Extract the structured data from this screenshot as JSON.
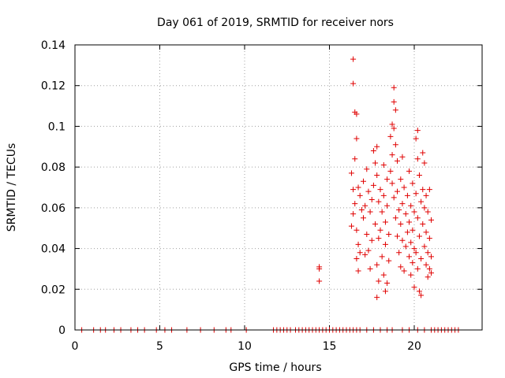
{
  "chart_data": {
    "type": "scatter",
    "title": "Day 061 of 2019, SRMTID for receiver nors",
    "xlabel": "GPS time / hours",
    "ylabel": "SRMTID / TECUs",
    "xlim": [
      0,
      24
    ],
    "ylim": [
      0,
      0.14
    ],
    "x_ticks": [
      {
        "value": 0,
        "label": "0"
      },
      {
        "value": 5,
        "label": "5"
      },
      {
        "value": 10,
        "label": "10"
      },
      {
        "value": 15,
        "label": "15"
      },
      {
        "value": 20,
        "label": "20"
      }
    ],
    "y_ticks": [
      {
        "value": 0,
        "label": "0"
      },
      {
        "value": 0.02,
        "label": "0.02"
      },
      {
        "value": 0.04,
        "label": "0.04"
      },
      {
        "value": 0.06,
        "label": "0.06"
      },
      {
        "value": 0.08,
        "label": "0.08"
      },
      {
        "value": 0.1,
        "label": "0.1"
      },
      {
        "value": 0.12,
        "label": "0.12"
      },
      {
        "value": 0.14,
        "label": "0.14"
      }
    ],
    "grid": true,
    "marker": "+",
    "marker_color": "#e00000",
    "series": [
      {
        "name": "SRMTID",
        "points": [
          [
            0.4,
            0
          ],
          [
            1.1,
            0
          ],
          [
            1.5,
            0
          ],
          [
            1.8,
            0
          ],
          [
            2.3,
            0
          ],
          [
            2.7,
            0
          ],
          [
            3.3,
            0
          ],
          [
            3.7,
            0
          ],
          [
            4.1,
            0
          ],
          [
            4.8,
            0
          ],
          [
            5.3,
            0
          ],
          [
            5.7,
            0
          ],
          [
            6.6,
            0
          ],
          [
            7.4,
            0
          ],
          [
            8.2,
            0
          ],
          [
            8.9,
            0
          ],
          [
            9.2,
            0
          ],
          [
            10.1,
            0
          ],
          [
            11.7,
            0
          ],
          [
            11.9,
            0
          ],
          [
            12.1,
            0
          ],
          [
            12.3,
            0
          ],
          [
            12.5,
            0
          ],
          [
            12.7,
            0
          ],
          [
            13.0,
            0
          ],
          [
            13.2,
            0
          ],
          [
            13.4,
            0
          ],
          [
            13.6,
            0
          ],
          [
            13.8,
            0
          ],
          [
            14.0,
            0
          ],
          [
            14.2,
            0
          ],
          [
            14.4,
            0
          ],
          [
            14.6,
            0
          ],
          [
            14.8,
            0
          ],
          [
            15.0,
            0
          ],
          [
            15.2,
            0
          ],
          [
            15.4,
            0
          ],
          [
            15.6,
            0
          ],
          [
            15.8,
            0
          ],
          [
            16.0,
            0
          ],
          [
            16.2,
            0
          ],
          [
            16.4,
            0
          ],
          [
            16.6,
            0
          ],
          [
            16.8,
            0
          ],
          [
            17.2,
            0
          ],
          [
            17.6,
            0
          ],
          [
            18.0,
            0
          ],
          [
            18.4,
            0
          ],
          [
            18.7,
            0
          ],
          [
            19.3,
            0
          ],
          [
            19.7,
            0
          ],
          [
            20.2,
            0
          ],
          [
            20.6,
            0
          ],
          [
            21.0,
            0
          ],
          [
            21.2,
            0
          ],
          [
            21.4,
            0
          ],
          [
            21.6,
            0
          ],
          [
            21.8,
            0
          ],
          [
            22.0,
            0
          ],
          [
            22.2,
            0
          ],
          [
            22.4,
            0
          ],
          [
            22.6,
            0
          ],
          [
            14.4,
            0.031
          ],
          [
            14.4,
            0.03
          ],
          [
            14.4,
            0.024
          ],
          [
            16.4,
            0.133
          ],
          [
            16.4,
            0.121
          ],
          [
            16.5,
            0.107
          ],
          [
            16.6,
            0.106
          ],
          [
            16.3,
            0.077
          ],
          [
            16.4,
            0.069
          ],
          [
            16.5,
            0.084
          ],
          [
            16.6,
            0.094
          ],
          [
            16.4,
            0.057
          ],
          [
            16.3,
            0.051
          ],
          [
            16.5,
            0.062
          ],
          [
            16.6,
            0.049
          ],
          [
            16.7,
            0.07
          ],
          [
            16.8,
            0.066
          ],
          [
            16.9,
            0.059
          ],
          [
            16.7,
            0.042
          ],
          [
            16.8,
            0.038
          ],
          [
            16.6,
            0.035
          ],
          [
            16.7,
            0.029
          ],
          [
            17.0,
            0.055
          ],
          [
            17.0,
            0.073
          ],
          [
            17.1,
            0.061
          ],
          [
            17.2,
            0.047
          ],
          [
            17.1,
            0.037
          ],
          [
            17.2,
            0.079
          ],
          [
            17.3,
            0.068
          ],
          [
            17.3,
            0.039
          ],
          [
            17.4,
            0.058
          ],
          [
            17.4,
            0.03
          ],
          [
            17.5,
            0.064
          ],
          [
            17.5,
            0.044
          ],
          [
            17.6,
            0.088
          ],
          [
            17.7,
            0.082
          ],
          [
            17.6,
            0.071
          ],
          [
            17.7,
            0.052
          ],
          [
            17.8,
            0.09
          ],
          [
            17.8,
            0.076
          ],
          [
            17.9,
            0.063
          ],
          [
            17.9,
            0.045
          ],
          [
            17.8,
            0.032
          ],
          [
            17.9,
            0.024
          ],
          [
            17.8,
            0.016
          ],
          [
            18.0,
            0.069
          ],
          [
            18.0,
            0.049
          ],
          [
            18.1,
            0.058
          ],
          [
            18.1,
            0.036
          ],
          [
            18.2,
            0.081
          ],
          [
            18.2,
            0.066
          ],
          [
            18.3,
            0.053
          ],
          [
            18.3,
            0.042
          ],
          [
            18.2,
            0.027
          ],
          [
            18.4,
            0.074
          ],
          [
            18.4,
            0.061
          ],
          [
            18.5,
            0.047
          ],
          [
            18.5,
            0.034
          ],
          [
            18.4,
            0.023
          ],
          [
            18.3,
            0.019
          ],
          [
            18.6,
            0.095
          ],
          [
            18.7,
            0.101
          ],
          [
            18.7,
            0.086
          ],
          [
            18.8,
            0.119
          ],
          [
            18.8,
            0.112
          ],
          [
            18.9,
            0.108
          ],
          [
            18.8,
            0.099
          ],
          [
            18.6,
            0.078
          ],
          [
            18.7,
            0.072
          ],
          [
            18.8,
            0.065
          ],
          [
            18.9,
            0.091
          ],
          [
            18.9,
            0.055
          ],
          [
            19.0,
            0.083
          ],
          [
            19.0,
            0.068
          ],
          [
            19.0,
            0.046
          ],
          [
            19.1,
            0.059
          ],
          [
            19.1,
            0.038
          ],
          [
            19.2,
            0.074
          ],
          [
            19.2,
            0.052
          ],
          [
            19.2,
            0.031
          ],
          [
            19.3,
            0.085
          ],
          [
            19.3,
            0.062
          ],
          [
            19.3,
            0.044
          ],
          [
            19.4,
            0.07
          ],
          [
            19.4,
            0.029
          ],
          [
            19.5,
            0.057
          ],
          [
            19.5,
            0.041
          ],
          [
            19.6,
            0.066
          ],
          [
            19.6,
            0.048
          ],
          [
            19.7,
            0.078
          ],
          [
            19.7,
            0.053
          ],
          [
            19.7,
            0.036
          ],
          [
            19.8,
            0.061
          ],
          [
            19.8,
            0.043
          ],
          [
            19.8,
            0.027
          ],
          [
            19.9,
            0.072
          ],
          [
            19.9,
            0.049
          ],
          [
            19.9,
            0.033
          ],
          [
            20.0,
            0.058
          ],
          [
            20.0,
            0.04
          ],
          [
            20.0,
            0.021
          ],
          [
            20.1,
            0.094
          ],
          [
            20.1,
            0.067
          ],
          [
            20.1,
            0.038
          ],
          [
            20.2,
            0.098
          ],
          [
            20.2,
            0.084
          ],
          [
            20.2,
            0.055
          ],
          [
            20.2,
            0.03
          ],
          [
            20.3,
            0.076
          ],
          [
            20.3,
            0.046
          ],
          [
            20.3,
            0.019
          ],
          [
            20.4,
            0.063
          ],
          [
            20.4,
            0.035
          ],
          [
            20.4,
            0.017
          ],
          [
            20.5,
            0.087
          ],
          [
            20.5,
            0.069
          ],
          [
            20.5,
            0.052
          ],
          [
            20.6,
            0.082
          ],
          [
            20.6,
            0.06
          ],
          [
            20.6,
            0.041
          ],
          [
            20.7,
            0.066
          ],
          [
            20.7,
            0.048
          ],
          [
            20.7,
            0.032
          ],
          [
            20.8,
            0.058
          ],
          [
            20.8,
            0.038
          ],
          [
            20.8,
            0.026
          ],
          [
            20.9,
            0.069
          ],
          [
            20.9,
            0.045
          ],
          [
            20.9,
            0.03
          ],
          [
            21.0,
            0.054
          ],
          [
            21.0,
            0.036
          ],
          [
            21.0,
            0.028
          ]
        ]
      }
    ]
  }
}
